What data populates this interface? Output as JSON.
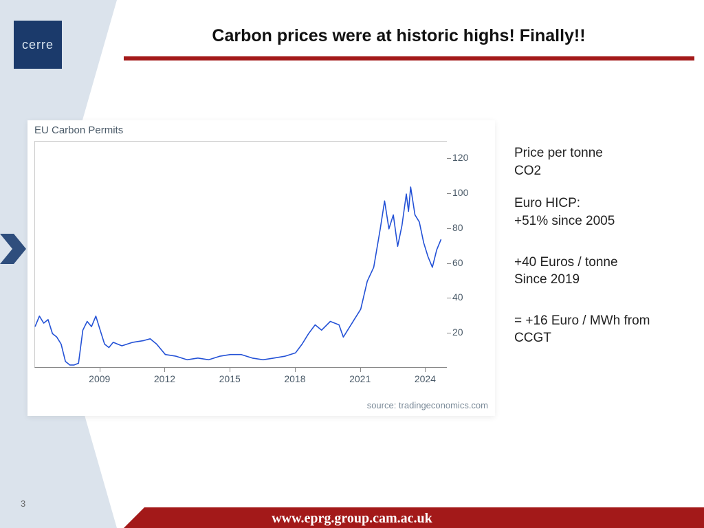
{
  "logo_text": "cerre",
  "title": "Carbon prices were at historic highs! Finally!!",
  "page_number": "3",
  "footer_url": "www.eprg.group.cam.ac.uk",
  "colors": {
    "band": "#dbe3ec",
    "logo_bg": "#1b3a6b",
    "accent": "#a31919",
    "line": "#2351d6",
    "axis_text": "#4a5a68",
    "arrow": "#2f4e7d"
  },
  "side": {
    "p1a": "Price per tonne",
    "p1b": "CO2",
    "p2a": "Euro HICP:",
    "p2b": "+51% since 2005",
    "p3a": "+40 Euros / tonne",
    "p3b": "Since 2019",
    "p4a": "= +16 Euro / MWh from",
    "p4b": "CCGT"
  },
  "chart": {
    "type": "line",
    "title": "EU Carbon Permits",
    "source": "source: tradingeconomics.com",
    "x_range": [
      2006,
      2025
    ],
    "y_range": [
      0,
      130
    ],
    "y_ticks": [
      20,
      40,
      60,
      80,
      100,
      120
    ],
    "x_ticks": [
      2009,
      2012,
      2015,
      2018,
      2021,
      2024
    ],
    "line_color": "#2351d6",
    "line_width": 1.6,
    "background": "#ffffff",
    "border_color": "#cccccc",
    "series": [
      [
        2006.0,
        24
      ],
      [
        2006.2,
        30
      ],
      [
        2006.4,
        26
      ],
      [
        2006.6,
        28
      ],
      [
        2006.8,
        20
      ],
      [
        2007.0,
        18
      ],
      [
        2007.2,
        14
      ],
      [
        2007.4,
        4
      ],
      [
        2007.6,
        2
      ],
      [
        2007.8,
        2
      ],
      [
        2008.0,
        3
      ],
      [
        2008.2,
        22
      ],
      [
        2008.4,
        27
      ],
      [
        2008.6,
        24
      ],
      [
        2008.8,
        30
      ],
      [
        2009.0,
        22
      ],
      [
        2009.2,
        14
      ],
      [
        2009.4,
        12
      ],
      [
        2009.6,
        15
      ],
      [
        2009.8,
        14
      ],
      [
        2010.0,
        13
      ],
      [
        2010.5,
        15
      ],
      [
        2011.0,
        16
      ],
      [
        2011.3,
        17
      ],
      [
        2011.6,
        14
      ],
      [
        2012.0,
        8
      ],
      [
        2012.5,
        7
      ],
      [
        2013.0,
        5
      ],
      [
        2013.5,
        6
      ],
      [
        2014.0,
        5
      ],
      [
        2014.5,
        7
      ],
      [
        2015.0,
        8
      ],
      [
        2015.5,
        8
      ],
      [
        2016.0,
        6
      ],
      [
        2016.5,
        5
      ],
      [
        2017.0,
        6
      ],
      [
        2017.5,
        7
      ],
      [
        2018.0,
        9
      ],
      [
        2018.3,
        14
      ],
      [
        2018.6,
        20
      ],
      [
        2018.9,
        25
      ],
      [
        2019.2,
        22
      ],
      [
        2019.6,
        27
      ],
      [
        2020.0,
        25
      ],
      [
        2020.2,
        18
      ],
      [
        2020.4,
        22
      ],
      [
        2020.7,
        28
      ],
      [
        2021.0,
        34
      ],
      [
        2021.3,
        50
      ],
      [
        2021.6,
        58
      ],
      [
        2021.9,
        80
      ],
      [
        2022.1,
        96
      ],
      [
        2022.3,
        80
      ],
      [
        2022.5,
        88
      ],
      [
        2022.7,
        70
      ],
      [
        2022.9,
        82
      ],
      [
        2023.1,
        100
      ],
      [
        2023.2,
        90
      ],
      [
        2023.3,
        104
      ],
      [
        2023.5,
        88
      ],
      [
        2023.7,
        84
      ],
      [
        2023.9,
        72
      ],
      [
        2024.1,
        64
      ],
      [
        2024.3,
        58
      ],
      [
        2024.5,
        68
      ],
      [
        2024.7,
        74
      ]
    ]
  }
}
